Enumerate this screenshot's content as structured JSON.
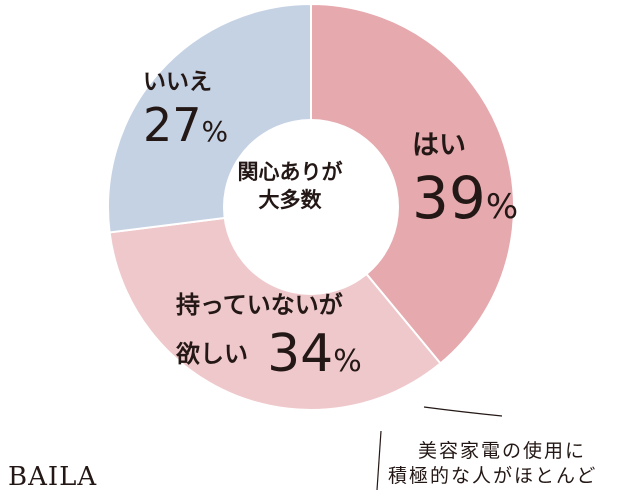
{
  "chart_data": {
    "type": "pie",
    "style": "donut",
    "categories": [
      "はい",
      "持っていないが欲しい",
      "いいえ"
    ],
    "values": [
      39,
      34,
      27
    ],
    "unit": "%",
    "colors": [
      "#e5a9ae",
      "#efc8cb",
      "#c5d2e4"
    ],
    "center_label": [
      "関心ありが",
      "大多数"
    ],
    "labels": [
      {
        "name": "はい",
        "value": "39",
        "unit": "%"
      },
      {
        "name_lines": [
          "持っていないが",
          "欲しい"
        ],
        "value": "34",
        "unit": "%"
      },
      {
        "name": "いいえ",
        "value": "27",
        "unit": "%"
      }
    ]
  },
  "note": {
    "lines": [
      "美容家電の使用に",
      "積極的な人がほとんど"
    ]
  },
  "brand": {
    "logo": "BAILA"
  }
}
